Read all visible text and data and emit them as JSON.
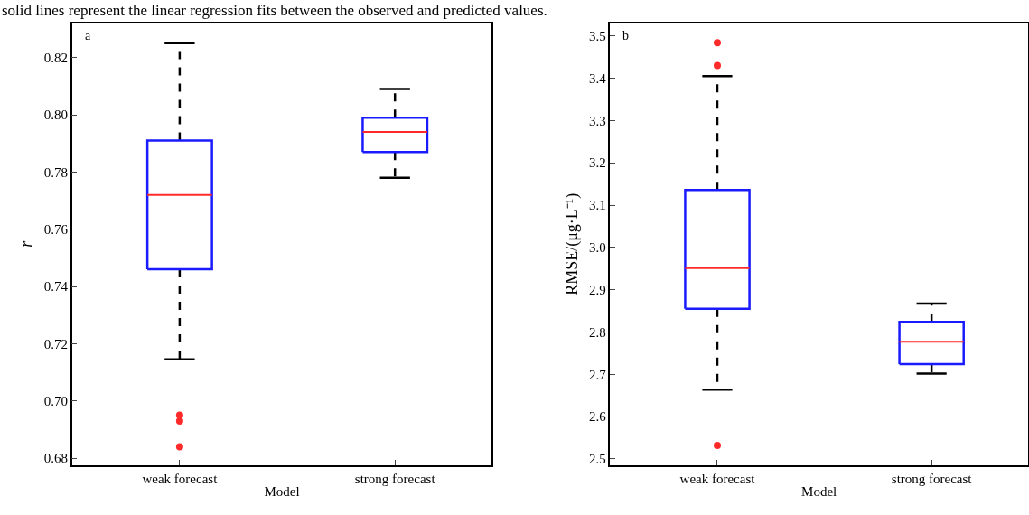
{
  "chart_data": [
    {
      "type": "box",
      "title": "a",
      "xlabel": "Model",
      "ylabel": "r",
      "categories": [
        "weak forecast",
        "strong forecast"
      ],
      "boxes": [
        {
          "low": 0.7145,
          "q1": 0.746,
          "median": 0.772,
          "q3": 0.791,
          "high": 0.825,
          "outliers": [
            0.695,
            0.693,
            0.684
          ]
        },
        {
          "low": 0.778,
          "q1": 0.787,
          "median": 0.794,
          "q3": 0.799,
          "high": 0.809
        }
      ],
      "ylim": [
        0.6775,
        0.832
      ],
      "yticks": [
        0.68,
        {
          "value": 0.7,
          "label": "0.70"
        },
        {
          "value": 0.72,
          "label": "0.72"
        },
        0.74,
        0.76,
        0.78,
        {
          "value": 0.8,
          "label": "0.80"
        },
        0.82
      ],
      "annotations": [
        "solid lines represent the linear regression fits between the observed and predicted values."
      ]
    },
    {
      "type": "box",
      "title": "b",
      "xlabel": "Model",
      "ylabel": "RMSE/(μg·L⁻¹)",
      "categories": [
        "weak forecast",
        "strong forecast"
      ],
      "boxes": [
        {
          "low": 2.664,
          "q1": 2.855,
          "median": 2.951,
          "q3": 3.136,
          "high": 3.405,
          "outliers": [
            3.484,
            3.43,
            2.532
          ]
        },
        {
          "low": 2.702,
          "q1": 2.724,
          "median": 2.777,
          "q3": 2.824,
          "high": 2.867
        }
      ],
      "ylim": [
        2.485,
        3.53
      ],
      "yticks": [
        2.5,
        2.6,
        2.7,
        2.8,
        2.9,
        {
          "value": 3.0,
          "label": "3.0"
        },
        3.1,
        3.2,
        3.3,
        3.4,
        3.5
      ]
    }
  ]
}
